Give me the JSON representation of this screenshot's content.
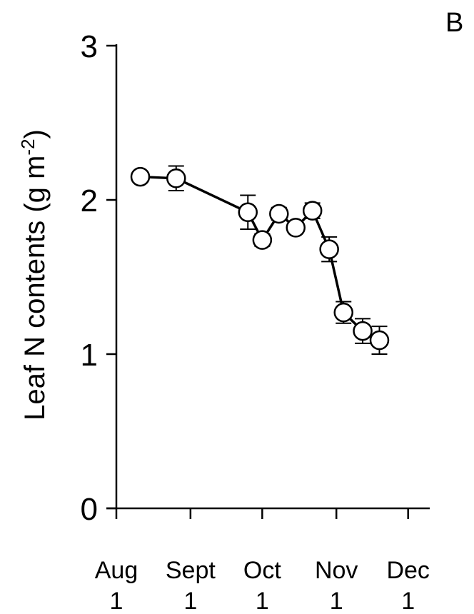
{
  "chart_data": {
    "type": "line",
    "panel_label": "B",
    "ylabel": "Leaf N contents (g m",
    "ylabel_sup": "-2",
    "ylabel_close": ")",
    "ylim": [
      0,
      3
    ],
    "yticks": [
      "0",
      "1",
      "2",
      "3"
    ],
    "xlim": [
      0,
      120
    ],
    "xticks": [
      {
        "month": "Aug",
        "day": "1",
        "x": 0
      },
      {
        "month": "Sept",
        "day": "1",
        "x": 31
      },
      {
        "month": "Oct",
        "day": "1",
        "x": 61
      },
      {
        "month": "Nov",
        "day": "1",
        "x": 92
      },
      {
        "month": "Dec",
        "day": "1",
        "x": 122
      }
    ],
    "series": [
      {
        "points": [
          {
            "x": 10,
            "y": 2.15,
            "err": 0.03
          },
          {
            "x": 25,
            "y": 2.14,
            "err": 0.08
          },
          {
            "x": 55,
            "y": 1.92,
            "err": 0.11
          },
          {
            "x": 61,
            "y": 1.74,
            "err": 0.04
          },
          {
            "x": 68,
            "y": 1.91,
            "err": 0.04
          },
          {
            "x": 75,
            "y": 1.82,
            "err": 0.03
          },
          {
            "x": 82,
            "y": 1.93,
            "err": 0.05
          },
          {
            "x": 89,
            "y": 1.68,
            "err": 0.08
          },
          {
            "x": 95,
            "y": 1.27,
            "err": 0.07
          },
          {
            "x": 103,
            "y": 1.15,
            "err": 0.08
          },
          {
            "x": 110,
            "y": 1.09,
            "err": 0.09
          }
        ]
      }
    ]
  }
}
